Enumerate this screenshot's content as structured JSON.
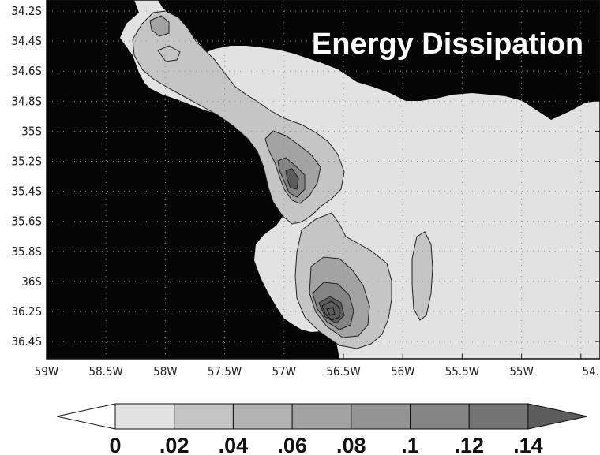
{
  "title": "Energy Dissipation",
  "colors": {
    "land": "#050505",
    "background": "#ffffff",
    "levels": [
      "#ffffff",
      "#e2e2e2",
      "#c5c5c5",
      "#b3b3b3",
      "#a3a3a3",
      "#939393",
      "#848484",
      "#747474",
      "#5c5c5c"
    ]
  },
  "map": {
    "lat_ticks": [
      "34.2S",
      "34.4S",
      "34.6S",
      "34.8S",
      "35S",
      "35.2S",
      "35.4S",
      "35.6S",
      "35.8S",
      "36S",
      "36.2S",
      "36.4S"
    ],
    "lon_ticks": [
      "59W",
      "58.5W",
      "58W",
      "57.5W",
      "57W",
      "56.5W",
      "56W",
      "55.5W",
      "55W",
      "54."
    ],
    "grid": true
  },
  "colorbar": {
    "labels": [
      "0",
      ".02",
      ".04",
      ".06",
      ".08",
      ".1",
      ".12",
      ".14"
    ],
    "values": [
      0,
      0.02,
      0.04,
      0.06,
      0.08,
      0.1,
      0.12,
      0.14
    ]
  }
}
